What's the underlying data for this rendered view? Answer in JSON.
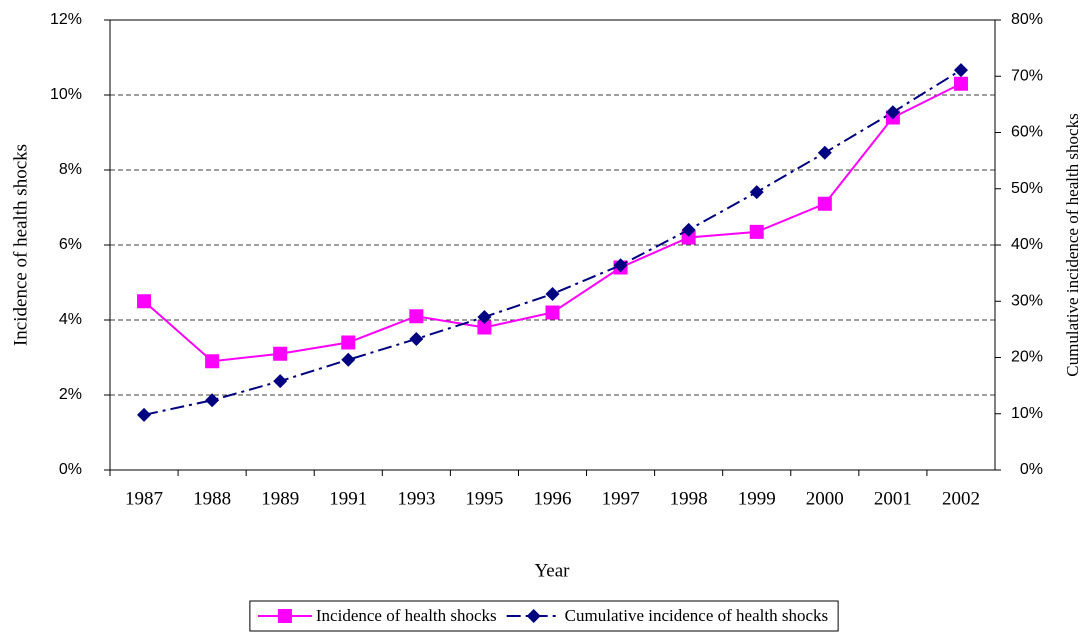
{
  "chart_data": {
    "type": "line",
    "xlabel": "Year",
    "ylabel": "Incidence of health shocks",
    "y2label": "Cumulative incidence of health shocks",
    "categories": [
      "1987",
      "1988",
      "1989",
      "1991",
      "1993",
      "1995",
      "1996",
      "1997",
      "1998",
      "1999",
      "2000",
      "2001",
      "2002"
    ],
    "series": [
      {
        "name": "Incidence of health shocks",
        "color": "#ff00ff",
        "axis": "y",
        "values": [
          4.5,
          2.9,
          3.1,
          3.4,
          4.1,
          3.8,
          4.2,
          5.4,
          6.2,
          6.35,
          7.1,
          9.4,
          10.3
        ]
      },
      {
        "name": "Cumulative incidence of health shocks",
        "color": "#000080",
        "axis": "y2",
        "values": [
          9.8,
          12.4,
          15.8,
          19.6,
          23.3,
          27.2,
          31.3,
          36.4,
          42.7,
          49.4,
          56.4,
          63.6,
          71.1
        ]
      }
    ],
    "ylim": [
      0,
      12
    ],
    "yticks": [
      {
        "value": 0,
        "label": "0%"
      },
      {
        "value": 2,
        "label": "2%"
      },
      {
        "value": 4,
        "label": "4%"
      },
      {
        "value": 6,
        "label": "6%"
      },
      {
        "value": 8,
        "label": "8%"
      },
      {
        "value": 10,
        "label": "10%"
      },
      {
        "value": 12,
        "label": "12%"
      }
    ],
    "y2lim": [
      0,
      80
    ],
    "y2ticks": [
      {
        "value": 0,
        "label": "0%"
      },
      {
        "value": 10,
        "label": "10%"
      },
      {
        "value": 20,
        "label": "20%"
      },
      {
        "value": 30,
        "label": "30%"
      },
      {
        "value": 40,
        "label": "40%"
      },
      {
        "value": 50,
        "label": "50%"
      },
      {
        "value": 60,
        "label": "60%"
      },
      {
        "value": 70,
        "label": "70%"
      },
      {
        "value": 80,
        "label": "80%"
      }
    ],
    "grid": true,
    "legend": "bottom"
  }
}
